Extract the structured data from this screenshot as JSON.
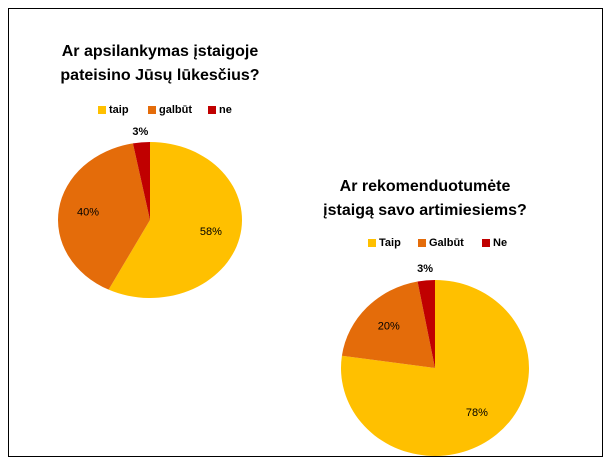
{
  "chart_data": [
    {
      "type": "pie",
      "title": [
        "Ar apsilankymas įstaigoje",
        "pateisino Jūsų lūkesčius?"
      ],
      "categories": [
        "taip",
        "galbūt",
        "ne"
      ],
      "values": [
        58,
        40,
        3
      ],
      "value_labels": [
        "58%",
        "40%",
        "3%"
      ],
      "colors": [
        "#ffc000",
        "#e46c0a",
        "#c00000"
      ],
      "legend": "top"
    },
    {
      "type": "pie",
      "title": [
        "Ar rekomenduotumėte",
        "įstaigą savo artimiesiems?"
      ],
      "categories": [
        "Taip",
        "Galbūt",
        "Ne"
      ],
      "values": [
        78,
        20,
        3
      ],
      "value_labels": [
        "78%",
        "20%",
        "3%"
      ],
      "colors": [
        "#ffc000",
        "#e46c0a",
        "#c00000"
      ],
      "legend": "top"
    }
  ]
}
